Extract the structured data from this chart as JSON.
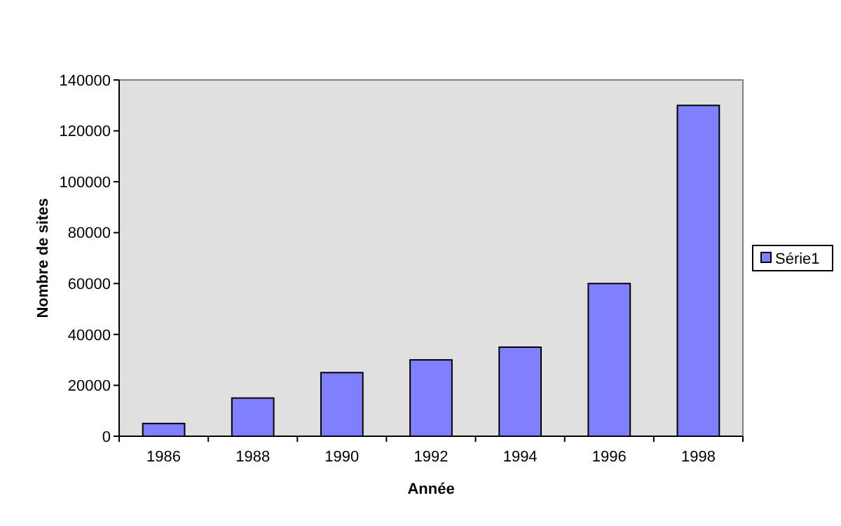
{
  "chart_data": {
    "type": "bar",
    "xlabel": "Année",
    "ylabel": "Nombre de sites",
    "categories": [
      "1986",
      "1988",
      "1990",
      "1992",
      "1994",
      "1996",
      "1998"
    ],
    "series": [
      {
        "name": "Série1",
        "color": "#8080ff",
        "values": [
          5000,
          15000,
          25000,
          30000,
          35000,
          60000,
          130000
        ]
      }
    ],
    "ylim": [
      0,
      140000
    ],
    "yticks": [
      0,
      20000,
      40000,
      60000,
      80000,
      100000,
      120000,
      140000
    ],
    "grid": false,
    "legend": "right"
  }
}
